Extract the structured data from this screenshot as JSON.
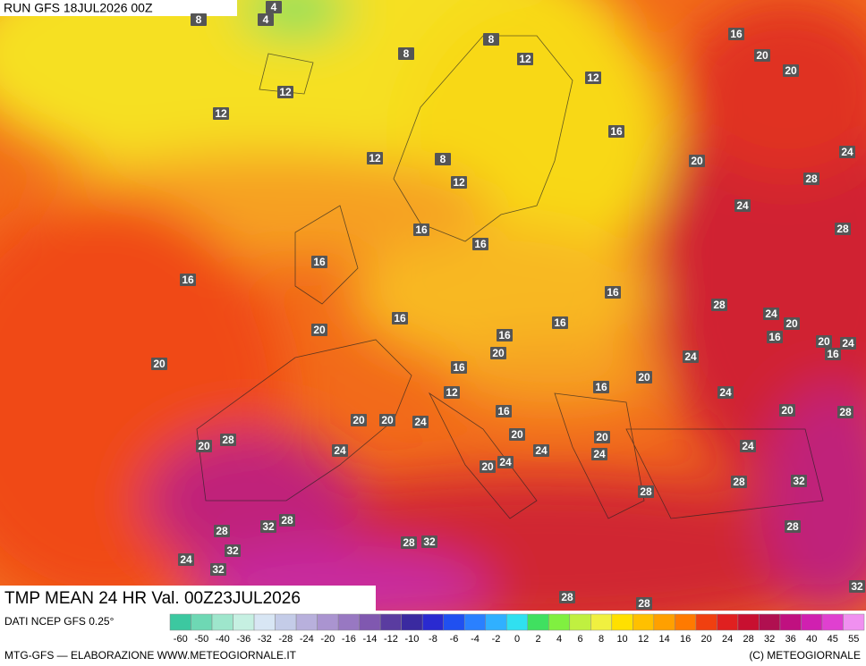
{
  "header": {
    "run": "RUN GFS 18JUL2026 00Z"
  },
  "map": {
    "title": "TMP MEAN 24 HR Val. 00Z23JUL2026",
    "labels": [
      4,
      8,
      4,
      8,
      8,
      12,
      12,
      16,
      20,
      20,
      12,
      12,
      16,
      12,
      8,
      20,
      24,
      12,
      28,
      24,
      16,
      16,
      28,
      16,
      16,
      16,
      28,
      16,
      16,
      24,
      20,
      20,
      16,
      16,
      20,
      24,
      16,
      20,
      20,
      24,
      16,
      20,
      12,
      16,
      24,
      28,
      20,
      20,
      20,
      24,
      16,
      20,
      20,
      20,
      28,
      24,
      24,
      24,
      24,
      20,
      24,
      28,
      28,
      32,
      32,
      28,
      28,
      28,
      28,
      32,
      32,
      24,
      32,
      32,
      28,
      28
    ]
  },
  "footer": {
    "source": "DATI NCEP GFS 0.25°",
    "credit": "MTG-GFS — ELABORAZIONE WWW.METEOGIORNALE.IT",
    "copyright": "(C) METEOGIORNALE"
  },
  "scale": {
    "labels": [
      -60,
      -50,
      -40,
      -36,
      -32,
      -28,
      -24,
      -20,
      -16,
      -14,
      -12,
      -10,
      -8,
      -6,
      -4,
      -2,
      0,
      2,
      4,
      6,
      8,
      10,
      12,
      14,
      16,
      20,
      24,
      28,
      32,
      36,
      40,
      45,
      55
    ],
    "colors": [
      "#3cc8a0",
      "#6ed8b4",
      "#9ee6cc",
      "#c6f0e2",
      "#d8e6f4",
      "#c4cce8",
      "#b8b0dc",
      "#aa94d0",
      "#9878c2",
      "#8058b0",
      "#5a3ca0",
      "#3a2aa0",
      "#2a2ad0",
      "#2050f0",
      "#2a80ff",
      "#30b0ff",
      "#30e0f0",
      "#40e060",
      "#80f040",
      "#c0f040",
      "#f0f040",
      "#ffe000",
      "#ffc000",
      "#ffa000",
      "#ff7a00",
      "#f04010",
      "#e02020",
      "#c81030",
      "#b01050",
      "#c01080",
      "#d020b0",
      "#e040d0",
      "#f090f0"
    ]
  }
}
